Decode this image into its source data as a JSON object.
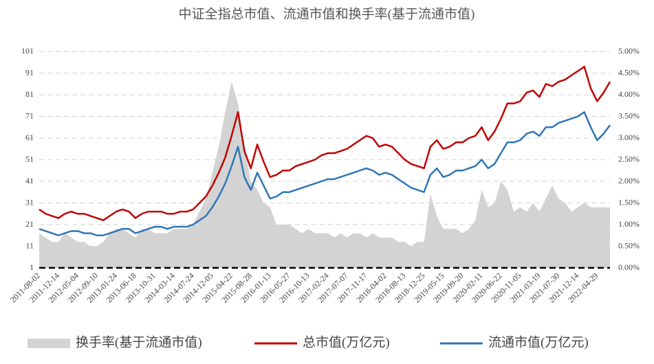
{
  "chart_data": {
    "type": "line",
    "title": "中证全指总市值、流通市值和换手率(基于流通市值)",
    "categories": [
      "2011-08-02",
      null,
      null,
      "2011-12-14",
      null,
      null,
      "2012-05-04",
      null,
      null,
      "2012-09-10",
      null,
      null,
      "2013-01-24",
      null,
      null,
      "2013-06-18",
      null,
      null,
      "2013-10-31",
      null,
      null,
      "2014-03-14",
      null,
      null,
      "2014-07-24",
      null,
      null,
      "2014-12-05",
      null,
      null,
      "2015-04-22",
      null,
      null,
      "2015-08-28",
      null,
      null,
      "2016-01-13",
      null,
      null,
      "2016-05-27",
      null,
      null,
      "2016-10-13",
      null,
      null,
      "2017-02-24",
      null,
      null,
      "2017-07-07",
      null,
      null,
      "2017-11-17",
      null,
      null,
      "2018-04-02",
      null,
      null,
      "2018-08-13",
      null,
      null,
      "2018-12-25",
      null,
      null,
      "2019-05-15",
      null,
      null,
      "2019-09-20",
      null,
      null,
      "2020-02-11",
      null,
      null,
      "2020-06-22",
      null,
      null,
      "2020-11-05",
      null,
      null,
      "2021-03-19",
      null,
      null,
      "2021-07-30",
      null,
      null,
      "2021-12-14",
      null,
      null,
      "2022-04-29",
      null,
      null
    ],
    "series": [
      {
        "name": "换手率(基于流通市值)",
        "type": "area",
        "axis": "y2",
        "color": "#d3d3d3",
        "values": [
          0.8,
          0.7,
          0.6,
          0.6,
          0.8,
          0.7,
          0.6,
          0.6,
          0.5,
          0.5,
          0.6,
          0.8,
          0.9,
          0.9,
          0.8,
          0.7,
          0.9,
          0.9,
          0.8,
          0.8,
          0.8,
          0.9,
          0.9,
          0.9,
          1.0,
          1.3,
          1.6,
          2.2,
          2.8,
          3.6,
          4.3,
          3.8,
          2.8,
          2.0,
          1.8,
          1.5,
          1.4,
          1.0,
          1.0,
          1.0,
          0.9,
          0.8,
          0.9,
          0.8,
          0.8,
          0.8,
          0.7,
          0.8,
          0.7,
          0.8,
          0.8,
          0.7,
          0.8,
          0.7,
          0.7,
          0.7,
          0.6,
          0.6,
          0.5,
          0.6,
          0.6,
          1.7,
          1.2,
          0.9,
          0.9,
          0.9,
          0.8,
          0.9,
          1.1,
          1.8,
          1.4,
          1.5,
          2.0,
          1.8,
          1.3,
          1.4,
          1.3,
          1.5,
          1.3,
          1.6,
          1.9,
          1.6,
          1.5,
          1.3,
          1.4,
          1.5,
          1.4,
          1.4,
          1.4,
          1.4
        ]
      },
      {
        "name": "总市值(万亿元)",
        "type": "line",
        "color": "#c00000",
        "values": [
          28,
          26,
          25,
          24,
          26,
          27,
          26,
          26,
          25,
          24,
          23,
          25,
          27,
          28,
          27,
          24,
          26,
          27,
          27,
          27,
          26,
          26,
          27,
          27,
          28,
          31,
          34,
          39,
          45,
          52,
          62,
          73,
          55,
          47,
          58,
          50,
          43,
          44,
          46,
          46,
          48,
          49,
          50,
          51,
          53,
          54,
          54,
          55,
          56,
          58,
          60,
          62,
          61,
          57,
          58,
          57,
          54,
          51,
          49,
          48,
          47,
          57,
          60,
          56,
          57,
          59,
          59,
          61,
          62,
          66,
          60,
          64,
          70,
          77,
          77,
          78,
          82,
          83,
          80,
          86,
          85,
          87,
          88,
          90,
          92,
          94,
          84,
          78,
          82,
          87
        ]
      },
      {
        "name": "流通市值(万亿元)",
        "type": "line",
        "color": "#2e75b6",
        "values": [
          19,
          18,
          17,
          16,
          17,
          18,
          18,
          17,
          17,
          16,
          16,
          17,
          18,
          19,
          19,
          17,
          18,
          19,
          20,
          20,
          19,
          20,
          20,
          20,
          21,
          23,
          25,
          29,
          34,
          40,
          48,
          57,
          43,
          37,
          45,
          39,
          33,
          34,
          36,
          36,
          37,
          38,
          39,
          40,
          41,
          42,
          42,
          43,
          44,
          45,
          46,
          47,
          46,
          44,
          45,
          44,
          42,
          40,
          38,
          37,
          36,
          44,
          47,
          43,
          44,
          46,
          46,
          47,
          48,
          51,
          47,
          49,
          54,
          59,
          59,
          60,
          63,
          64,
          62,
          66,
          66,
          68,
          69,
          70,
          71,
          73,
          66,
          60,
          63,
          67
        ]
      }
    ],
    "ylim": [
      1,
      101
    ],
    "yticks": [
      1,
      11,
      21,
      31,
      41,
      51,
      61,
      71,
      81,
      91,
      101
    ],
    "y2lim": [
      0,
      5
    ],
    "y2ticks": [
      {
        "value": 0,
        "label": "0.00%"
      },
      {
        "value": 0.5,
        "label": "0.50%"
      },
      {
        "value": 1,
        "label": "1.00%"
      },
      {
        "value": 1.5,
        "label": "1.50%"
      },
      {
        "value": 2,
        "label": "2.00%"
      },
      {
        "value": 2.5,
        "label": "2.50%"
      },
      {
        "value": 3,
        "label": "3.00%"
      },
      {
        "value": 3.5,
        "label": "3.50%"
      },
      {
        "value": 4,
        "label": "4.00%"
      },
      {
        "value": 4.5,
        "label": "4.50%"
      },
      {
        "value": 5,
        "label": "5.00%"
      }
    ],
    "grid": true
  }
}
